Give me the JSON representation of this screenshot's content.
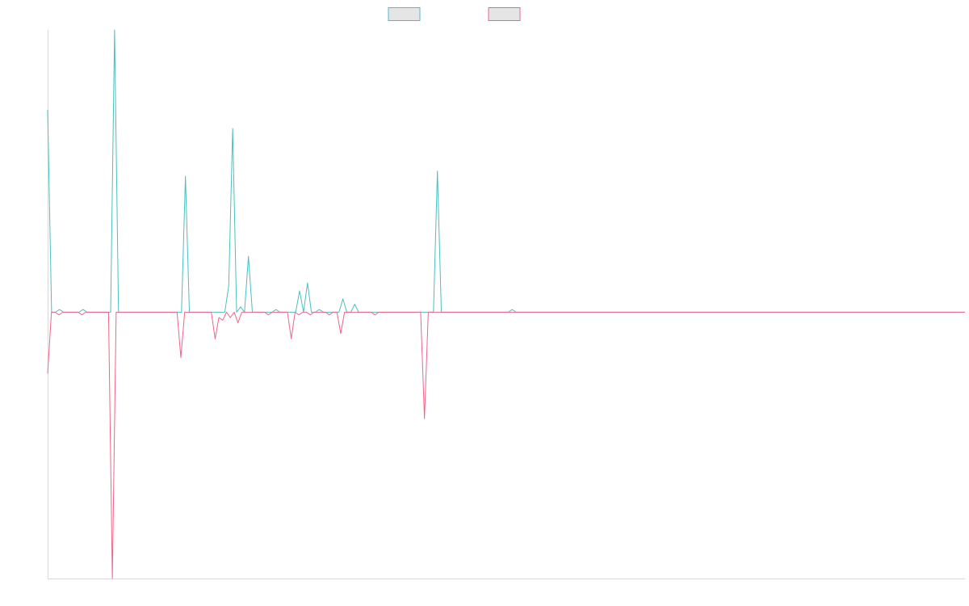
{
  "chart_data": {
    "type": "line",
    "title": "",
    "xlabel": "",
    "ylabel": "",
    "grid": false,
    "legend_placement": "top-center",
    "colors": {
      "positive": "#4BBFBF",
      "negative": "#F0648A",
      "axis": "#d9d9d9",
      "legend_fill": "#e5e5e5"
    },
    "ylim": [
      -1,
      1.06
    ],
    "series": [
      {
        "values": [
          0.76,
          0,
          0,
          0.01,
          0,
          0,
          0,
          0,
          0,
          0.01,
          0,
          0,
          0,
          0,
          0,
          0,
          0,
          1.06,
          0,
          0,
          0,
          0,
          0,
          0,
          0,
          0,
          0,
          0,
          0,
          0,
          0,
          0,
          0,
          0,
          0,
          0.51,
          0,
          0,
          0,
          0,
          0,
          0,
          0,
          0,
          0,
          0,
          0.1,
          0.69,
          0,
          0.02,
          0,
          0.21,
          0,
          0,
          0,
          0,
          0,
          0,
          0.01,
          0,
          0,
          0,
          0,
          0,
          0.08,
          0,
          0.11,
          0,
          0,
          0.01,
          0,
          0,
          0,
          0,
          0,
          0.05,
          0,
          0,
          0.03,
          0,
          0,
          0,
          0,
          0,
          0,
          0,
          0,
          0,
          0,
          0,
          0,
          0,
          0,
          0,
          0,
          0,
          0,
          0,
          0,
          0.53,
          0,
          0,
          0,
          0,
          0,
          0,
          0,
          0,
          0,
          0,
          0,
          0,
          0,
          0,
          0,
          0,
          0,
          0,
          0.01,
          0,
          0,
          0,
          0,
          0,
          0,
          0,
          0,
          0,
          0,
          0,
          0,
          0,
          0,
          0,
          0,
          0,
          0,
          0,
          0,
          0,
          0,
          0,
          0,
          0,
          0,
          0,
          0,
          0,
          0,
          0,
          0,
          0,
          0,
          0,
          0,
          0,
          0,
          0,
          0,
          0,
          0,
          0,
          0,
          0,
          0,
          0,
          0,
          0,
          0,
          0,
          0,
          0,
          0,
          0,
          0,
          0,
          0,
          0,
          0,
          0,
          0,
          0,
          0,
          0,
          0,
          0,
          0,
          0,
          0,
          0,
          0,
          0,
          0,
          0,
          0,
          0,
          0,
          0,
          0,
          0,
          0,
          0,
          0,
          0,
          0,
          0,
          0,
          0,
          0,
          0,
          0,
          0,
          0,
          0,
          0,
          0,
          0,
          0,
          0,
          0,
          0,
          0,
          0,
          0,
          0,
          0,
          0,
          0,
          0,
          0,
          0,
          0,
          0,
          0
        ]
      },
      {
        "values": [
          -0.23,
          0,
          0,
          -0.01,
          0,
          0,
          0,
          0,
          0,
          -0.01,
          0,
          0,
          0,
          0,
          0,
          0,
          0,
          -1,
          0,
          0,
          0,
          0,
          0,
          0,
          0,
          0,
          0,
          0,
          0,
          0,
          0,
          0,
          0,
          0,
          0,
          -0.17,
          0,
          0,
          0,
          0,
          0,
          0,
          0,
          0,
          -0.1,
          -0.02,
          -0.03,
          0,
          -0.02,
          0,
          -0.04,
          0,
          0,
          0,
          0,
          0,
          0,
          0,
          -0.01,
          0,
          0,
          0,
          0,
          0,
          -0.1,
          0,
          -0.01,
          0,
          0,
          -0.01,
          0,
          0,
          0,
          0,
          -0.01,
          0,
          0,
          -0.08,
          0,
          0,
          0,
          0,
          0,
          0,
          0,
          0,
          -0.01,
          0,
          0,
          0,
          0,
          0,
          0,
          0,
          0,
          0,
          0,
          0,
          0,
          -0.4,
          0,
          0,
          0,
          0,
          0,
          0,
          0,
          0,
          0,
          0,
          0,
          0,
          0,
          0,
          0,
          0,
          0,
          0,
          0,
          0,
          0,
          0,
          0,
          0,
          0,
          0,
          0,
          0,
          0,
          0,
          0,
          0,
          0,
          0,
          0,
          0,
          0,
          0,
          0,
          0,
          0,
          0,
          0,
          0,
          0,
          0,
          0,
          0,
          0,
          0,
          0,
          0,
          0,
          0,
          0,
          0,
          0,
          0,
          0,
          0,
          0,
          0,
          0,
          0,
          0,
          0,
          0,
          0,
          0,
          0,
          0,
          0,
          0,
          0,
          0,
          0,
          0,
          0,
          0,
          0,
          0,
          0,
          0,
          0,
          0,
          0,
          0,
          0,
          0,
          0,
          0,
          0,
          0,
          0,
          0,
          0,
          0,
          0,
          0,
          0,
          0,
          0,
          0,
          0,
          0,
          0,
          0,
          0,
          0,
          0,
          0,
          0,
          0,
          0,
          0,
          0,
          0,
          0,
          0,
          0,
          0,
          0,
          0,
          0,
          0,
          0,
          0,
          0,
          0,
          0,
          0,
          0,
          0,
          0,
          0,
          0,
          0,
          0,
          0,
          0,
          0,
          0
        ]
      }
    ]
  }
}
